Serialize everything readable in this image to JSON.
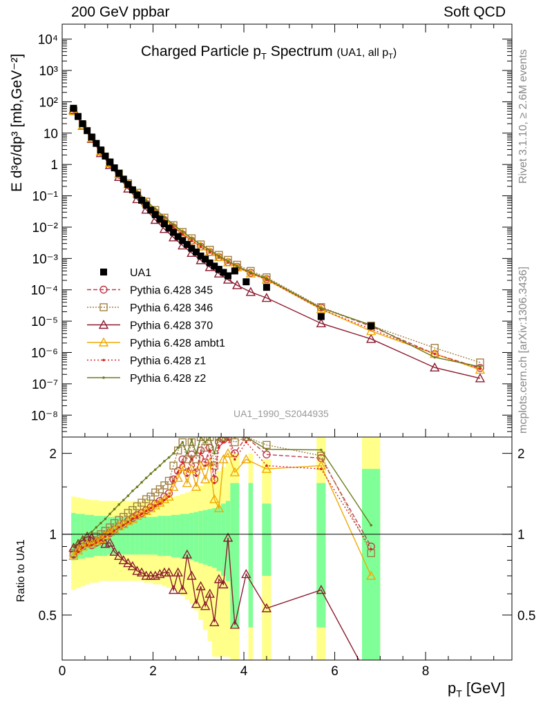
{
  "header": {
    "left": "200 GeV ppbar",
    "right": "Soft QCD"
  },
  "side_labels": {
    "rivet": "Rivet 3.1.10, ≥ 2.6M events",
    "mcplots": "mcplots.cern.ch [arXiv:1306.3436]"
  },
  "chart_data": {
    "type": "scatter",
    "title_main": "Charged Particle p",
    "title_sub_T": "T",
    "title_main_tail": " Spectrum",
    "title_extra": "(UA1, all p",
    "title_extra_tail": ")",
    "watermark": "UA1_1990_S2044935",
    "xlabel": "p",
    "xlabel_sub": "T",
    "xlabel_tail": " [GeV]",
    "ylabel": "E d³σ/dp³ [mb,GeV⁻²]",
    "ratio_ylabel": "Ratio to UA1",
    "xlim": [
      0,
      9.9
    ],
    "ylim_main": [
      2e-09,
      30000
    ],
    "ylim_ratio": [
      0.34,
      2.3
    ],
    "x_ticks": [
      "0",
      "2",
      "4",
      "6",
      "8"
    ],
    "y_main_ticks": [
      "10⁴",
      "10³",
      "10²",
      "10",
      "1",
      "10⁻¹",
      "10⁻²",
      "10⁻³",
      "10⁻⁴",
      "10⁻⁵",
      "10⁻⁶",
      "10⁻⁷",
      "10⁻⁸"
    ],
    "y_ratio_ticks": [
      "0.5",
      "1",
      "2"
    ],
    "legend_placement": "middle-left",
    "reference": {
      "name": "UA1",
      "x": [
        0.25,
        0.35,
        0.45,
        0.55,
        0.65,
        0.75,
        0.85,
        0.95,
        1.05,
        1.15,
        1.25,
        1.35,
        1.45,
        1.55,
        1.65,
        1.75,
        1.85,
        1.95,
        2.05,
        2.15,
        2.25,
        2.35,
        2.45,
        2.55,
        2.65,
        2.75,
        2.85,
        2.95,
        3.05,
        3.15,
        3.25,
        3.35,
        3.45,
        3.55,
        3.65,
        3.8,
        4.05,
        4.5,
        5.7,
        6.8
      ],
      "y": [
        62,
        34,
        20,
        12,
        7.5,
        4.7,
        2.9,
        1.85,
        1.2,
        0.78,
        0.52,
        0.34,
        0.23,
        0.155,
        0.105,
        0.072,
        0.05,
        0.035,
        0.025,
        0.018,
        0.0128,
        0.0093,
        0.0068,
        0.005,
        0.0037,
        0.0028,
        0.0021,
        0.0016,
        0.0012,
        0.00095,
        0.00072,
        0.00057,
        0.00045,
        0.00036,
        0.00028,
        0.0004,
        0.00018,
        0.00012,
        1.4e-05,
        7e-06
      ],
      "color": "#000000",
      "band_inner": "#80ff98",
      "band_outer": "#ffff8a"
    },
    "series": [
      {
        "name": "Pythia 6.428 345",
        "color": "#c0394a",
        "marker": "circle",
        "dash": "6,3",
        "main_x": [
          0.25,
          0.45,
          0.65,
          0.85,
          1.05,
          1.25,
          1.45,
          1.65,
          1.85,
          2.05,
          2.25,
          2.45,
          2.65,
          2.85,
          3.05,
          3.25,
          3.45,
          3.65,
          3.85,
          4.15,
          4.5,
          5.7,
          6.8,
          8.2,
          9.2
        ],
        "main_y": [
          50,
          17,
          6.5,
          2.5,
          1.05,
          0.47,
          0.22,
          0.11,
          0.056,
          0.03,
          0.017,
          0.0098,
          0.0059,
          0.0037,
          0.0024,
          0.0016,
          0.0011,
          0.00076,
          0.00054,
          0.00035,
          0.00022,
          2.7e-05,
          6.8e-06,
          9e-07,
          3.2e-07
        ],
        "ratio_x": [
          0.25,
          0.35,
          0.45,
          0.55,
          0.65,
          0.75,
          0.85,
          0.95,
          1.05,
          1.15,
          1.25,
          1.35,
          1.45,
          1.55,
          1.65,
          1.75,
          1.85,
          1.95,
          2.05,
          2.15,
          2.25,
          2.35,
          2.45,
          2.55,
          2.65,
          2.75,
          2.85,
          2.95,
          3.05,
          3.15,
          3.25,
          3.35,
          3.45,
          3.55,
          3.65,
          3.8,
          4.05,
          4.5,
          5.7,
          6.8
        ],
        "ratio_y": [
          0.84,
          0.88,
          0.9,
          0.92,
          0.91,
          0.93,
          0.95,
          0.98,
          1.01,
          1.04,
          1.07,
          1.09,
          1.12,
          1.15,
          1.18,
          1.2,
          1.23,
          1.26,
          1.3,
          1.33,
          1.38,
          1.42,
          1.6,
          1.72,
          1.9,
          1.7,
          1.98,
          1.7,
          2.05,
          1.85,
          2.1,
          1.6,
          2.2,
          2.25,
          2.3,
          2.0,
          2.3,
          1.98,
          1.92,
          0.9
        ]
      },
      {
        "name": "Pythia 6.428 346",
        "color": "#a08040",
        "marker": "square",
        "dash": "2,2",
        "main_x": [
          0.25,
          0.45,
          0.65,
          0.85,
          1.05,
          1.25,
          1.45,
          1.65,
          1.85,
          2.05,
          2.25,
          2.45,
          2.65,
          2.85,
          3.05,
          3.25,
          3.45,
          3.65,
          3.85,
          4.15,
          4.5,
          5.7,
          6.8,
          8.2,
          9.2
        ],
        "main_y": [
          52,
          18,
          7,
          2.7,
          1.15,
          0.52,
          0.25,
          0.125,
          0.065,
          0.035,
          0.02,
          0.0115,
          0.007,
          0.0044,
          0.0028,
          0.0019,
          0.0013,
          0.0009,
          0.00063,
          0.0004,
          0.00025,
          2.8e-05,
          7.2e-06,
          1.4e-06,
          4.8e-07
        ],
        "ratio_x": [
          0.25,
          0.35,
          0.45,
          0.55,
          0.65,
          0.75,
          0.85,
          0.95,
          1.05,
          1.15,
          1.25,
          1.35,
          1.45,
          1.55,
          1.65,
          1.75,
          1.85,
          1.95,
          2.05,
          2.15,
          2.25,
          2.35,
          2.45,
          2.55,
          2.65,
          2.75,
          2.85,
          2.95,
          3.05,
          3.15,
          3.25,
          3.35,
          3.45,
          3.55,
          3.65,
          3.8,
          4.05,
          4.5,
          5.7,
          6.8
        ],
        "ratio_y": [
          0.85,
          0.89,
          0.92,
          0.94,
          0.95,
          0.98,
          1.0,
          1.03,
          1.06,
          1.1,
          1.13,
          1.16,
          1.2,
          1.23,
          1.27,
          1.31,
          1.35,
          1.38,
          1.43,
          1.47,
          1.52,
          1.58,
          1.8,
          2.05,
          2.2,
          1.9,
          2.2,
          1.9,
          2.3,
          2.1,
          2.3,
          1.8,
          2.3,
          2.3,
          2.3,
          2.2,
          2.3,
          2.15,
          1.96,
          0.85
        ]
      },
      {
        "name": "Pythia 6.428 370",
        "color": "#8b1a2e",
        "marker": "triangle",
        "dash": "",
        "main_x": [
          0.25,
          0.45,
          0.65,
          0.85,
          1.05,
          1.25,
          1.45,
          1.65,
          1.85,
          2.05,
          2.25,
          2.45,
          2.65,
          2.85,
          3.05,
          3.25,
          3.45,
          3.65,
          3.85,
          4.15,
          4.5,
          5.7,
          6.8,
          8.2,
          9.2
        ],
        "main_y": [
          55,
          17,
          6.5,
          2.3,
          0.95,
          0.4,
          0.17,
          0.078,
          0.036,
          0.017,
          0.0087,
          0.0047,
          0.0026,
          0.0015,
          0.00088,
          0.00053,
          0.00033,
          0.00021,
          0.00014,
          8.5e-05,
          5.5e-05,
          8.5e-06,
          2.7e-06,
          3.3e-07,
          1.5e-07
        ],
        "ratio_x": [
          0.25,
          0.35,
          0.45,
          0.55,
          0.65,
          0.75,
          0.85,
          0.95,
          1.05,
          1.15,
          1.25,
          1.35,
          1.45,
          1.55,
          1.65,
          1.75,
          1.85,
          1.95,
          2.05,
          2.15,
          2.25,
          2.35,
          2.45,
          2.55,
          2.65,
          2.75,
          2.85,
          2.95,
          3.05,
          3.15,
          3.25,
          3.35,
          3.45,
          3.55,
          3.65,
          3.8,
          4.05,
          4.5,
          5.7,
          6.8
        ],
        "ratio_y": [
          0.89,
          0.92,
          0.95,
          0.98,
          0.97,
          0.94,
          0.96,
          0.92,
          0.93,
          0.86,
          0.83,
          0.8,
          0.78,
          0.76,
          0.73,
          0.72,
          0.7,
          0.7,
          0.7,
          0.71,
          0.72,
          0.72,
          0.62,
          0.72,
          0.62,
          0.84,
          0.7,
          0.55,
          0.64,
          0.54,
          0.6,
          0.47,
          0.68,
          0.65,
          0.97,
          0.46,
          0.71,
          0.53,
          0.62,
          0.28
        ]
      },
      {
        "name": "Pythia 6.428 ambt1",
        "color": "#f0a800",
        "marker": "triangle",
        "dash": "",
        "main_x": [
          0.25,
          0.45,
          0.65,
          0.85,
          1.05,
          1.25,
          1.45,
          1.65,
          1.85,
          2.05,
          2.25,
          2.45,
          2.65,
          2.85,
          3.05,
          3.25,
          3.45,
          3.65,
          3.85,
          4.15,
          4.5,
          5.7,
          6.8,
          8.2,
          9.2
        ],
        "main_y": [
          50,
          17.5,
          6.8,
          2.6,
          1.1,
          0.5,
          0.235,
          0.117,
          0.06,
          0.032,
          0.018,
          0.0104,
          0.0062,
          0.0038,
          0.0024,
          0.0016,
          0.0011,
          0.00075,
          0.00052,
          0.00033,
          0.00021,
          2.4e-05,
          4.8e-06,
          9e-07,
          2.8e-07
        ],
        "ratio_x": [
          0.25,
          0.35,
          0.45,
          0.55,
          0.65,
          0.75,
          0.85,
          0.95,
          1.05,
          1.15,
          1.25,
          1.35,
          1.45,
          1.55,
          1.65,
          1.75,
          1.85,
          1.95,
          2.05,
          2.15,
          2.25,
          2.35,
          2.45,
          2.55,
          2.65,
          2.75,
          2.85,
          2.95,
          3.05,
          3.15,
          3.25,
          3.35,
          3.45,
          3.55,
          3.65,
          3.8,
          4.05,
          4.5,
          5.7,
          6.8
        ],
        "ratio_y": [
          0.83,
          0.87,
          0.9,
          0.92,
          0.92,
          0.94,
          0.96,
          0.99,
          1.02,
          1.04,
          1.07,
          1.09,
          1.12,
          1.14,
          1.17,
          1.19,
          1.22,
          1.25,
          1.28,
          1.31,
          1.35,
          1.38,
          1.5,
          1.62,
          1.78,
          1.55,
          1.75,
          1.5,
          1.8,
          1.6,
          1.85,
          1.35,
          1.25,
          1.9,
          2.0,
          1.7,
          1.9,
          1.75,
          1.8,
          0.7
        ]
      },
      {
        "name": "Pythia 6.428 z1",
        "color": "#dd2020",
        "marker": "dot",
        "dash": "2,3",
        "main_x": [
          0.25,
          0.45,
          0.65,
          0.85,
          1.05,
          1.25,
          1.45,
          1.65,
          1.85,
          2.05,
          2.25,
          2.45,
          2.65,
          2.85,
          3.05,
          3.25,
          3.45,
          3.65,
          3.85,
          4.15,
          4.5,
          5.7,
          6.8,
          8.2,
          9.2
        ],
        "main_y": [
          50,
          17,
          6.6,
          2.5,
          1.05,
          0.47,
          0.22,
          0.11,
          0.057,
          0.031,
          0.017,
          0.01,
          0.006,
          0.0037,
          0.0024,
          0.0016,
          0.0011,
          0.00075,
          0.00052,
          0.00034,
          0.00021,
          2.4e-05,
          5.5e-06,
          9e-07,
          3e-07
        ],
        "ratio_x": [
          0.25,
          0.35,
          0.45,
          0.55,
          0.65,
          0.75,
          0.85,
          0.95,
          1.05,
          1.15,
          1.25,
          1.35,
          1.45,
          1.55,
          1.65,
          1.75,
          1.85,
          1.95,
          2.05,
          2.15,
          2.25,
          2.35,
          2.45,
          2.55,
          2.65,
          2.75,
          2.85,
          2.95,
          3.05,
          3.15,
          3.25,
          3.35,
          3.45,
          3.55,
          3.65,
          3.8,
          4.05,
          4.5,
          5.7,
          6.8
        ],
        "ratio_y": [
          0.82,
          0.86,
          0.89,
          0.91,
          0.91,
          0.93,
          0.95,
          0.98,
          1.0,
          1.03,
          1.06,
          1.08,
          1.11,
          1.14,
          1.16,
          1.19,
          1.22,
          1.25,
          1.28,
          1.3,
          1.34,
          1.38,
          1.58,
          1.7,
          1.85,
          1.65,
          1.9,
          1.65,
          2.0,
          1.8,
          2.05,
          1.55,
          2.1,
          2.2,
          2.25,
          1.9,
          2.2,
          1.8,
          1.75,
          0.88
        ]
      },
      {
        "name": "Pythia 6.428 z2",
        "color": "#6b7a1a",
        "marker": "dot",
        "dash": "",
        "main_x": [
          0.25,
          0.45,
          0.65,
          0.85,
          1.05,
          1.25,
          1.45,
          1.65,
          1.85,
          2.05,
          2.25,
          2.45,
          2.65,
          2.85,
          3.05,
          3.25,
          3.45,
          3.65,
          3.85,
          4.15,
          4.5,
          5.7,
          6.8,
          8.2,
          9.2
        ],
        "main_y": [
          55,
          19,
          7.5,
          2.9,
          1.25,
          0.57,
          0.27,
          0.135,
          0.07,
          0.038,
          0.021,
          0.012,
          0.0072,
          0.0044,
          0.0028,
          0.0018,
          0.0012,
          0.00082,
          0.00057,
          0.00036,
          0.00023,
          2.6e-05,
          7.5e-06,
          7e-07,
          3.5e-07
        ],
        "ratio_x": [
          0.25,
          0.35,
          0.45,
          0.55,
          0.65,
          0.75,
          0.85,
          0.95,
          1.05,
          1.15,
          1.25,
          1.35,
          1.45,
          1.55,
          1.65,
          1.75,
          1.85,
          1.95,
          2.05,
          2.15,
          2.25,
          2.35,
          2.45,
          2.55,
          2.65,
          2.75,
          2.85,
          2.95,
          3.05,
          3.15,
          3.25,
          3.35,
          3.45,
          3.55,
          3.65,
          3.8,
          4.05,
          4.5,
          5.7,
          6.8
        ],
        "ratio_y": [
          0.9,
          0.94,
          0.97,
          1.0,
          1.02,
          1.06,
          1.1,
          1.14,
          1.19,
          1.24,
          1.29,
          1.34,
          1.39,
          1.45,
          1.5,
          1.56,
          1.62,
          1.68,
          1.74,
          1.8,
          1.87,
          1.93,
          2.0,
          2.1,
          2.2,
          2.0,
          2.25,
          2.0,
          2.3,
          2.2,
          2.3,
          2.0,
          2.3,
          2.3,
          2.3,
          2.3,
          2.3,
          2.07,
          2.06,
          1.08
        ]
      }
    ],
    "band_x_edges": [
      0.2,
      0.3,
      0.4,
      0.5,
      0.6,
      0.7,
      0.8,
      0.9,
      1.0,
      1.1,
      1.2,
      1.3,
      1.4,
      1.5,
      1.6,
      1.7,
      1.8,
      1.9,
      2.0,
      2.1,
      2.2,
      2.3,
      2.4,
      2.5,
      2.6,
      2.7,
      2.8,
      2.9,
      3.0,
      3.1,
      3.2,
      3.3,
      3.4,
      3.5,
      3.6,
      3.7
    ],
    "band_inner": [
      0.2,
      0.19,
      0.19,
      0.18,
      0.18,
      0.17,
      0.17,
      0.17,
      0.16,
      0.16,
      0.16,
      0.16,
      0.16,
      0.16,
      0.16,
      0.16,
      0.16,
      0.16,
      0.16,
      0.17,
      0.17,
      0.17,
      0.18,
      0.18,
      0.19,
      0.19,
      0.2,
      0.21,
      0.22,
      0.23,
      0.24,
      0.25,
      0.27,
      0.3,
      0.33
    ],
    "band_outer": [
      0.38,
      0.37,
      0.36,
      0.35,
      0.34,
      0.34,
      0.33,
      0.33,
      0.33,
      0.33,
      0.33,
      0.33,
      0.33,
      0.33,
      0.33,
      0.33,
      0.34,
      0.34,
      0.35,
      0.35,
      0.36,
      0.37,
      0.38,
      0.39,
      0.41,
      0.43,
      0.45,
      0.48,
      0.52,
      0.56,
      0.6,
      0.66,
      0.72,
      0.78,
      0.85
    ],
    "extra_bands": [
      {
        "x0": 3.7,
        "x1": 3.9,
        "inner": 0.55,
        "outer": 1.0
      },
      {
        "x0": 4.1,
        "x1": 4.2,
        "inner": 0.55,
        "outer": 1.0
      },
      {
        "x0": 4.4,
        "x1": 4.6,
        "inner": 0.3,
        "outer": 0.9
      },
      {
        "x0": 5.6,
        "x1": 5.8,
        "inner": 0.55,
        "outer": 1.3
      },
      {
        "x0": 6.6,
        "x1": 7.0,
        "inner": 0.75,
        "outer": 1.3
      }
    ]
  }
}
